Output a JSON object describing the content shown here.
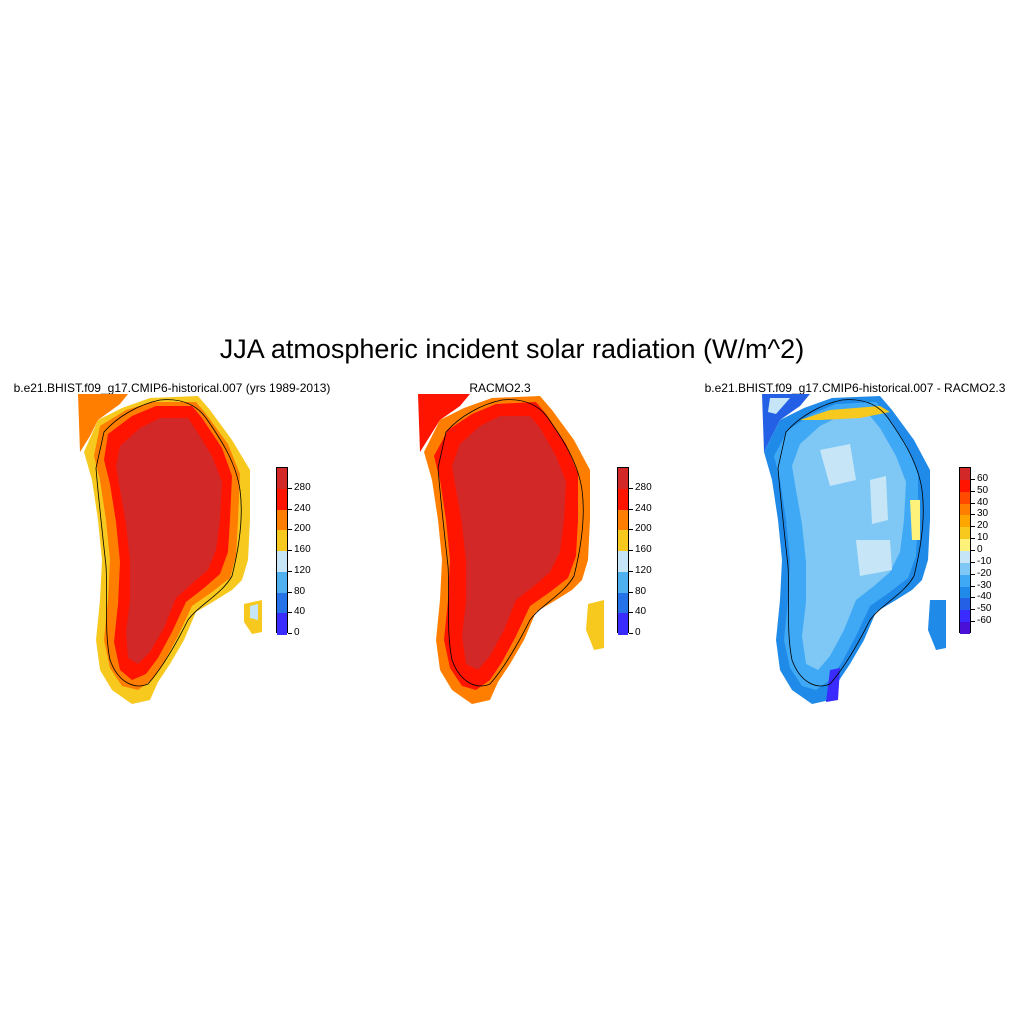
{
  "figure": {
    "title": "JJA atmospheric incident solar radiation (W/m^2)"
  },
  "panels": [
    {
      "title": "b.e21.BHIST.f09_g17.CMIP6-historical.007 (yrs 1989-2013)",
      "colorbar": {
        "labels": [
          "280",
          "240",
          "200",
          "160",
          "120",
          "80",
          "40",
          "0"
        ],
        "colors": [
          "#d22828",
          "#ff1400",
          "#ff7e00",
          "#f7c81e",
          "#c6e6f7",
          "#4fb0f0",
          "#2672e8",
          "#3a2cff"
        ]
      }
    },
    {
      "title": "RACMO2.3",
      "colorbar": {
        "labels": [
          "280",
          "240",
          "200",
          "160",
          "120",
          "80",
          "40",
          "0"
        ],
        "colors": [
          "#d22828",
          "#ff1400",
          "#ff7e00",
          "#f7c81e",
          "#c6e6f7",
          "#4fb0f0",
          "#2672e8",
          "#3a2cff"
        ]
      }
    },
    {
      "title": "b.e21.BHIST.f09_g17.CMIP6-historical.007 - RACMO2.3",
      "colorbar": {
        "labels": [
          "60",
          "50",
          "40",
          "30",
          "20",
          "10",
          "0",
          "-10",
          "-20",
          "-30",
          "-40",
          "-50",
          "-60"
        ],
        "colors": [
          "#d22828",
          "#ff1400",
          "#ff4a00",
          "#ff7e00",
          "#ffa500",
          "#f7c81e",
          "#fff27a",
          "#c6e6f7",
          "#7fc8f5",
          "#3fa9f5",
          "#1f8ae8",
          "#2460e6",
          "#3a2cff",
          "#4a10d8"
        ]
      }
    }
  ]
}
